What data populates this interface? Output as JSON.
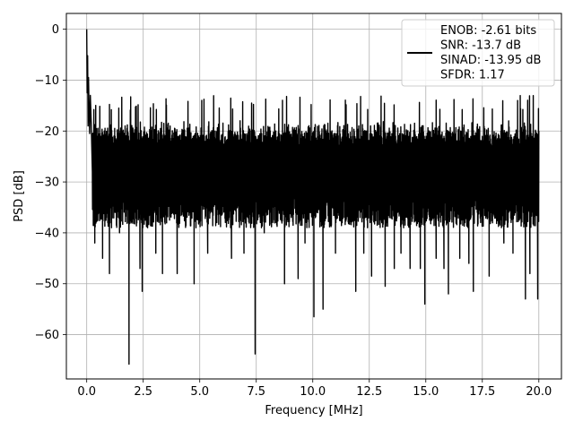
{
  "chart_data": {
    "type": "line",
    "title": "",
    "xlabel": "Frequency [MHz]",
    "ylabel": "PSD [dB]",
    "xlim": [
      -0.9,
      21.0
    ],
    "ylim": [
      -68.7,
      3.1
    ],
    "x_ticks": [
      0.0,
      2.5,
      5.0,
      7.5,
      10.0,
      12.5,
      15.0,
      17.5,
      20.0
    ],
    "x_tick_labels": [
      "0.0",
      "2.5",
      "5.0",
      "7.5",
      "10.0",
      "12.5",
      "15.0",
      "17.5",
      "20.0"
    ],
    "y_ticks": [
      0,
      -10,
      -20,
      -30,
      -40,
      -50,
      -60
    ],
    "y_tick_labels": [
      "0",
      "−10",
      "−20",
      "−30",
      "−40",
      "−50",
      "−60"
    ],
    "grid": true,
    "legend_position": "upper-right",
    "series": [
      {
        "name": "ENOB: -2.61 bits\nSNR: -13.7 dB\nSINAD: -13.95 dB\nSFDR: 1.17",
        "legend_lines": [
          "ENOB: -2.61 bits",
          "SNR: -13.7 dB",
          "SINAD: -13.95 dB",
          "SFDR: 1.17"
        ],
        "color": "#000000",
        "x_range": [
          0.0,
          20.0
        ],
        "points": [
          [
            0.0,
            0.0
          ],
          [
            0.02,
            -12.5
          ],
          [
            0.04,
            -5.2
          ],
          [
            0.06,
            -19.0
          ],
          [
            0.08,
            -9.5
          ],
          [
            0.1,
            -15.0
          ],
          [
            0.13,
            -20.5
          ],
          [
            0.16,
            -13.0
          ],
          [
            0.2,
            -18.5
          ],
          [
            0.25,
            -28.0
          ]
        ],
        "noise_envelope": {
          "typical_top": -20.0,
          "typical_bottom": -36.0,
          "peak_top": -12.5,
          "peak_top_x": 0.8
        },
        "deep_dips": [
          [
            0.35,
            -42.0
          ],
          [
            0.7,
            -45.0
          ],
          [
            1.0,
            -48.0
          ],
          [
            1.45,
            -40.0
          ],
          [
            1.87,
            -65.8
          ],
          [
            2.35,
            -47.0
          ],
          [
            2.45,
            -51.5
          ],
          [
            3.05,
            -44.0
          ],
          [
            3.35,
            -48.0
          ],
          [
            4.0,
            -48.0
          ],
          [
            4.75,
            -50.0
          ],
          [
            5.35,
            -44.0
          ],
          [
            5.75,
            -38.0
          ],
          [
            6.4,
            -45.0
          ],
          [
            6.95,
            -44.0
          ],
          [
            7.45,
            -63.8
          ],
          [
            7.85,
            -40.0
          ],
          [
            8.75,
            -50.0
          ],
          [
            9.35,
            -49.0
          ],
          [
            9.65,
            -42.0
          ],
          [
            10.05,
            -56.5
          ],
          [
            10.45,
            -55.0
          ],
          [
            11.0,
            -44.0
          ],
          [
            11.3,
            -38.0
          ],
          [
            11.9,
            -51.5
          ],
          [
            12.25,
            -44.0
          ],
          [
            12.6,
            -48.5
          ],
          [
            13.05,
            -38.0
          ],
          [
            13.2,
            -50.5
          ],
          [
            13.6,
            -47.0
          ],
          [
            13.9,
            -44.0
          ],
          [
            14.3,
            -47.0
          ],
          [
            14.75,
            -47.0
          ],
          [
            14.95,
            -54.0
          ],
          [
            15.45,
            -45.0
          ],
          [
            15.8,
            -47.0
          ],
          [
            16.0,
            -52.0
          ],
          [
            16.5,
            -45.0
          ],
          [
            16.9,
            -46.0
          ],
          [
            17.1,
            -51.5
          ],
          [
            17.8,
            -48.5
          ],
          [
            18.45,
            -42.0
          ],
          [
            18.85,
            -44.0
          ],
          [
            19.4,
            -53.0
          ],
          [
            19.6,
            -48.0
          ],
          [
            19.95,
            -53.0
          ]
        ]
      }
    ]
  }
}
